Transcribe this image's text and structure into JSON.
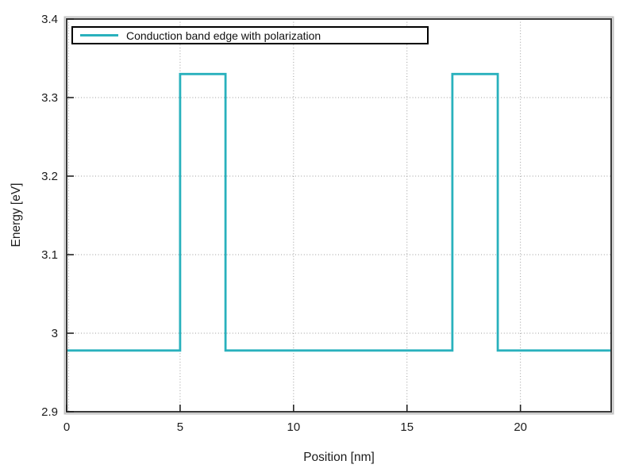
{
  "chart_data": {
    "type": "line",
    "title": "",
    "xlabel": "Position [nm]",
    "ylabel": "Energy [eV]",
    "xlim": [
      0,
      24
    ],
    "ylim": [
      2.9,
      3.4
    ],
    "x_ticks": [
      0,
      5,
      10,
      15,
      20
    ],
    "y_ticks": [
      2.9,
      3,
      3.1,
      3.2,
      3.3,
      3.4
    ],
    "grid": "dotted",
    "legend_position": "top-left",
    "series": [
      {
        "name": "Conduction band edge with polarization",
        "color": "#29b1bd",
        "line_width": 2.8,
        "x": [
          0,
          5,
          5,
          7,
          7,
          17,
          17,
          19,
          19,
          24
        ],
        "y": [
          2.978,
          2.978,
          3.33,
          3.33,
          2.978,
          2.978,
          3.33,
          3.33,
          2.978,
          2.978
        ]
      }
    ]
  },
  "legend": {
    "entries": [
      {
        "label": "Conduction band edge with polarization",
        "color": "#29b1bd"
      }
    ]
  },
  "colors": {
    "background": "#ffffff",
    "plot_border": "#3a3a3a",
    "plot_border_outer": "#c2c2c2",
    "grid": "#9c9c9c",
    "tick": "#222222",
    "text": "#1c1c1c",
    "series_teal": "#29b1bd",
    "legend_border": "#000000",
    "legend_background": "#ffffff"
  }
}
